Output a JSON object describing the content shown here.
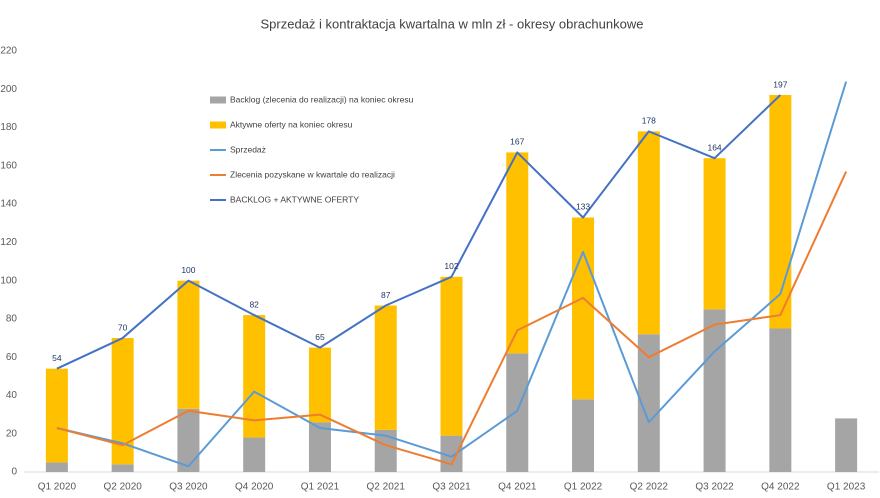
{
  "chart_data": {
    "type": "bar",
    "title": "Sprzedaż i kontraktacja kwartalna w mln zł - okresy obrachunkowe",
    "categories": [
      "Q1 2020",
      "Q2 2020",
      "Q3 2020",
      "Q4 2020",
      "Q1 2021",
      "Q2 2021",
      "Q3 2021",
      "Q4 2021",
      "Q1 2022",
      "Q2 2022",
      "Q3 2022",
      "Q4 2022",
      "Q1 2023"
    ],
    "series": [
      {
        "name": "Backlog (zlecenia do realizacji) na koniec okresu",
        "color": "#a5a5a5",
        "kind": "bar",
        "values": [
          5,
          4,
          33,
          18,
          26,
          22,
          19,
          62,
          38,
          72,
          85,
          75,
          28
        ]
      },
      {
        "name": "Aktywne oferty na koniec okresu",
        "color": "#ffc000",
        "kind": "bar",
        "values": [
          49,
          66,
          67,
          64,
          39,
          65,
          83,
          105,
          95,
          106,
          79,
          122,
          null
        ]
      },
      {
        "name": "Sprzedaż",
        "color": "#5b9bd5",
        "kind": "line",
        "values": [
          23,
          15,
          3,
          42,
          23,
          19,
          8,
          32,
          115,
          26,
          63,
          93,
          204
        ]
      },
      {
        "name": "Zlecenia pozyskane w kwartale do realizacji",
        "color": "#ed7d31",
        "kind": "line",
        "values": [
          23,
          14,
          32,
          27,
          30,
          14,
          4,
          74,
          91,
          60,
          77,
          82,
          157
        ]
      },
      {
        "name": "BACKLOG + AKTYWNE OFERTY",
        "color": "#4472c4",
        "kind": "line",
        "labels": true,
        "values": [
          54,
          70,
          100,
          82,
          65,
          87,
          102,
          167,
          133,
          178,
          164,
          197,
          null
        ]
      }
    ],
    "ylim": [
      0,
      220
    ],
    "yticks": [
      0,
      20,
      40,
      60,
      80,
      100,
      120,
      140,
      160,
      180,
      200,
      220
    ],
    "grid": false,
    "legend": "upper left"
  }
}
